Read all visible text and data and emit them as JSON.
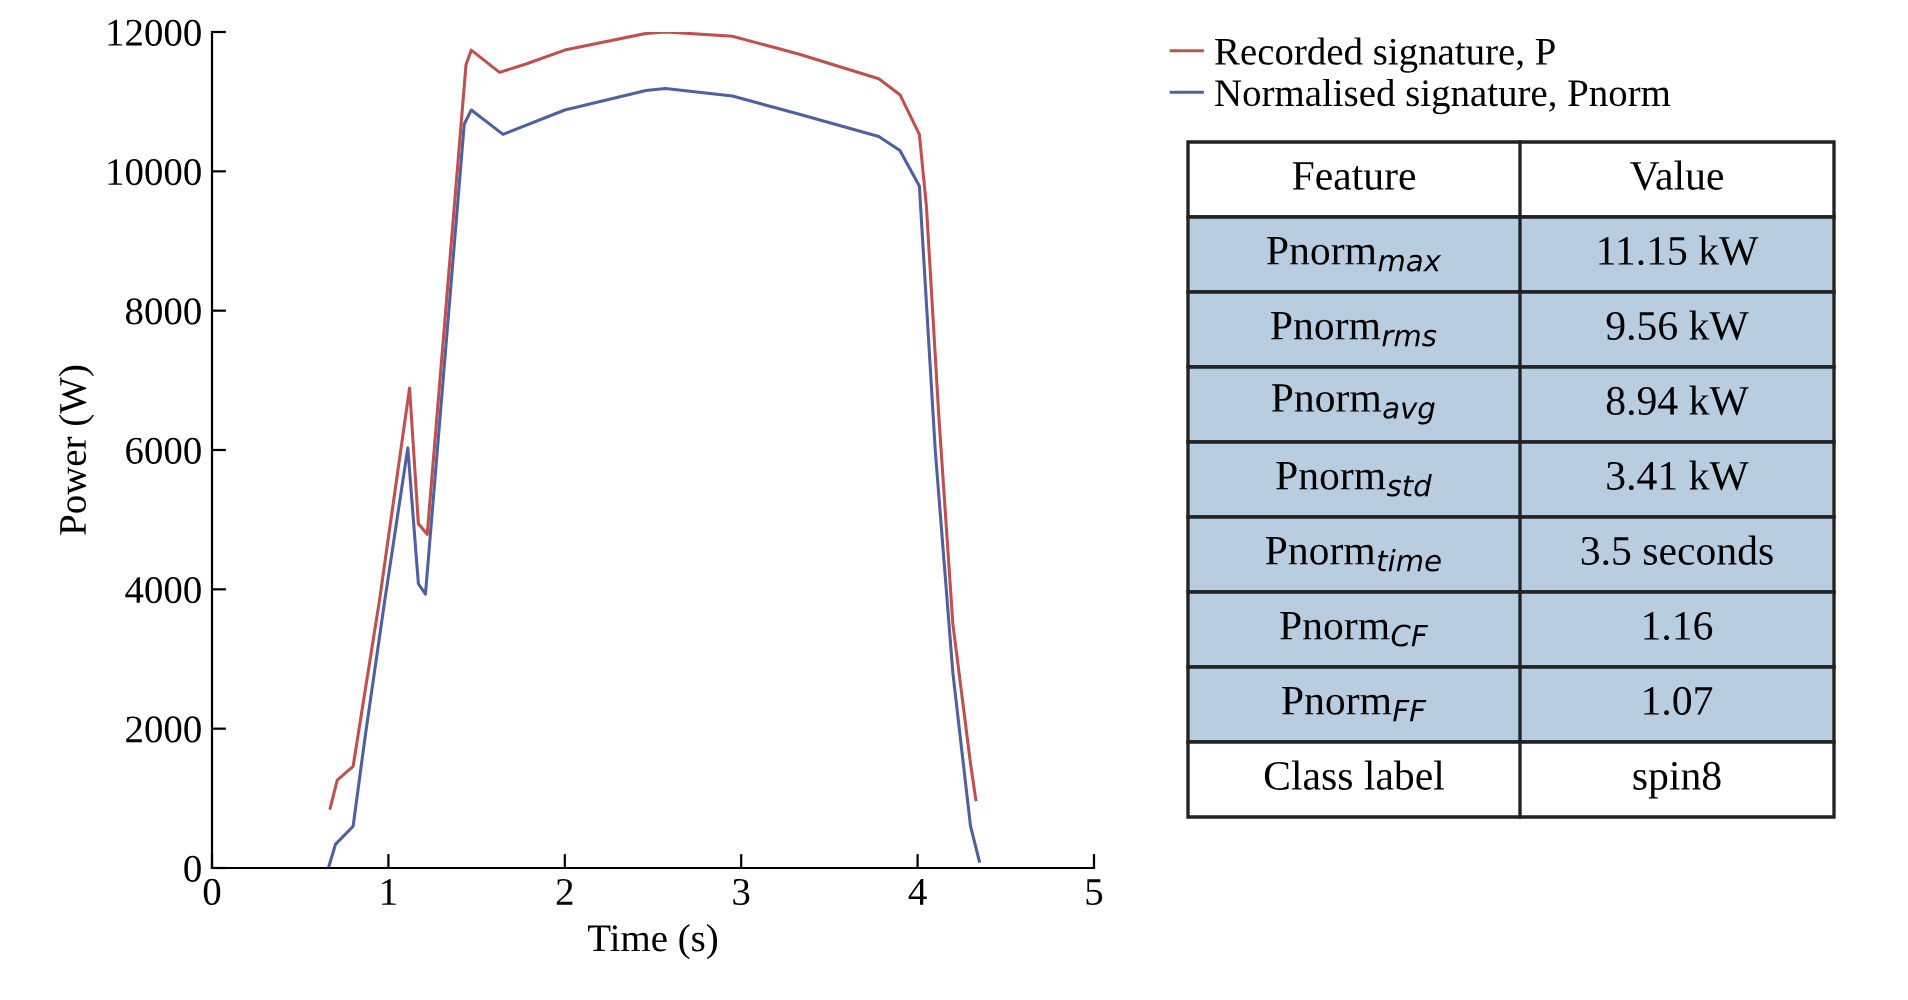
{
  "chart_data": [
    {
      "type": "line",
      "xlabel": "Time (s)",
      "ylabel": "Power (W)",
      "xlim": [
        0,
        5
      ],
      "ylim": [
        0,
        12000
      ],
      "xticks": [
        0,
        1,
        2,
        3,
        4,
        5
      ],
      "yticks": [
        0,
        2000,
        4000,
        6000,
        8000,
        10000,
        12000
      ],
      "grid": false,
      "legend": "top right",
      "marker": "none",
      "line_style": "solid",
      "series": [
        {
          "name": "Recorded signature, P",
          "color": "#c0504d",
          "x": [
            0.67,
            0.71,
            0.8,
            0.95,
            1.12,
            1.17,
            1.22,
            1.44,
            1.47,
            1.63,
            1.78,
            2.0,
            2.46,
            2.57,
            2.95,
            3.33,
            3.78,
            3.9,
            4.01,
            4.05,
            4.12,
            4.2,
            4.3,
            4.33
          ],
          "values": [
            860,
            1260,
            1460,
            3850,
            6890,
            4940,
            4790,
            11530,
            11740,
            11420,
            11540,
            11740,
            11980,
            12000,
            11940,
            11680,
            11330,
            11100,
            10530,
            9500,
            6500,
            3500,
            1500,
            980
          ]
        },
        {
          "name": "Normalised signature, Pnorm",
          "color": "#4f5fa0",
          "x": [
            0.66,
            0.7,
            0.8,
            0.87,
            0.98,
            1.11,
            1.17,
            1.21,
            1.43,
            1.47,
            1.65,
            2.0,
            2.46,
            2.57,
            2.95,
            3.33,
            3.78,
            3.9,
            4.01,
            4.1,
            4.2,
            4.3,
            4.35
          ],
          "values": [
            0,
            340,
            600,
            1920,
            3850,
            6030,
            4080,
            3930,
            10680,
            10880,
            10530,
            10880,
            11160,
            11190,
            11080,
            10820,
            10500,
            10300,
            9790,
            6000,
            2800,
            600,
            100
          ]
        }
      ]
    },
    {
      "type": "other",
      "annotations": [
        "Feature",
        "Value",
        "Pnorm$_{max}$",
        "11.15 kW",
        "Pnorm$_{rms}$",
        "9.56 kW",
        "Pnorm$_{avg}$",
        "8.94 kW",
        "Pnorm$_{std}$",
        "3.41 kW",
        "Pnorm$_{time}$",
        "3.5 seconds",
        "Pnorm$_{CF}$",
        "1.16",
        "Pnorm$_{FF}$",
        "1.07",
        "Class label",
        "spin8"
      ]
    }
  ]
}
